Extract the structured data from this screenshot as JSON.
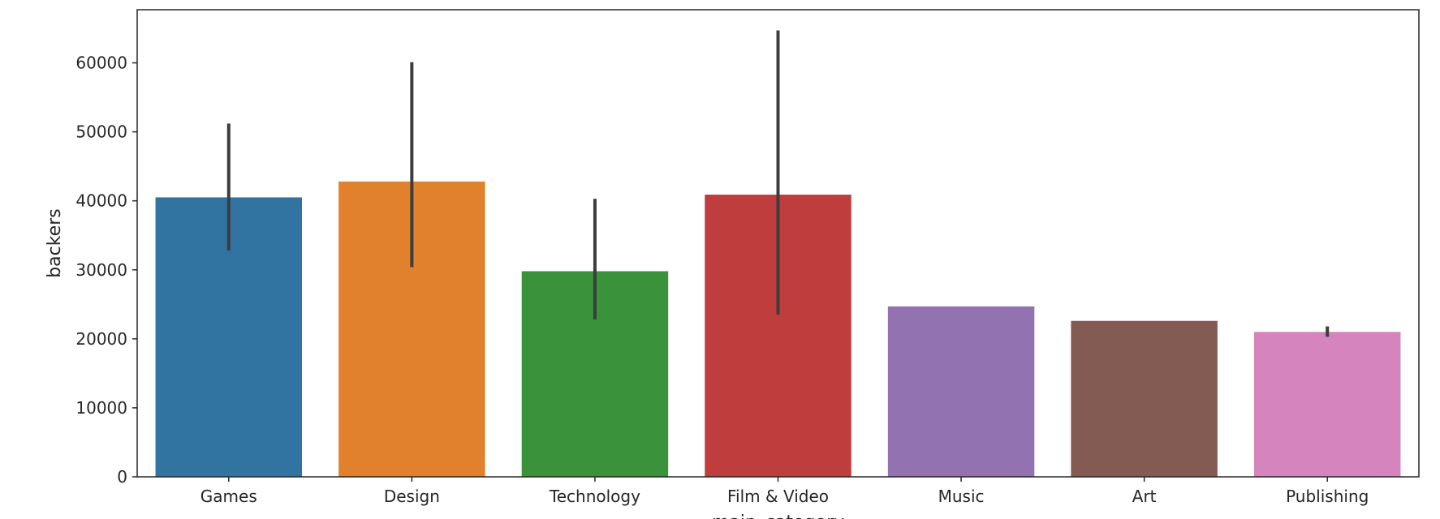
{
  "chart_data": {
    "type": "bar",
    "categories": [
      "Games",
      "Design",
      "Technology",
      "Film & Video",
      "Music",
      "Art",
      "Publishing"
    ],
    "values": [
      40500,
      42800,
      29800,
      40900,
      24700,
      22600,
      21000
    ],
    "error_bars": [
      [
        32800,
        51200
      ],
      [
        30400,
        60100
      ],
      [
        22800,
        40300
      ],
      [
        23500,
        64700
      ],
      [
        24700,
        24700
      ],
      [
        22600,
        22600
      ],
      [
        20300,
        21800
      ]
    ],
    "colors": [
      "#3274a1",
      "#e1812c",
      "#3a923a",
      "#c03d3e",
      "#9372b2",
      "#845b53",
      "#d684bd"
    ],
    "xlabel": "main_category",
    "ylabel": "backers",
    "ylim": [
      0,
      67700
    ],
    "yticks": [
      0,
      10000,
      20000,
      30000,
      40000,
      50000,
      60000
    ],
    "grid": false,
    "legend": "none"
  }
}
